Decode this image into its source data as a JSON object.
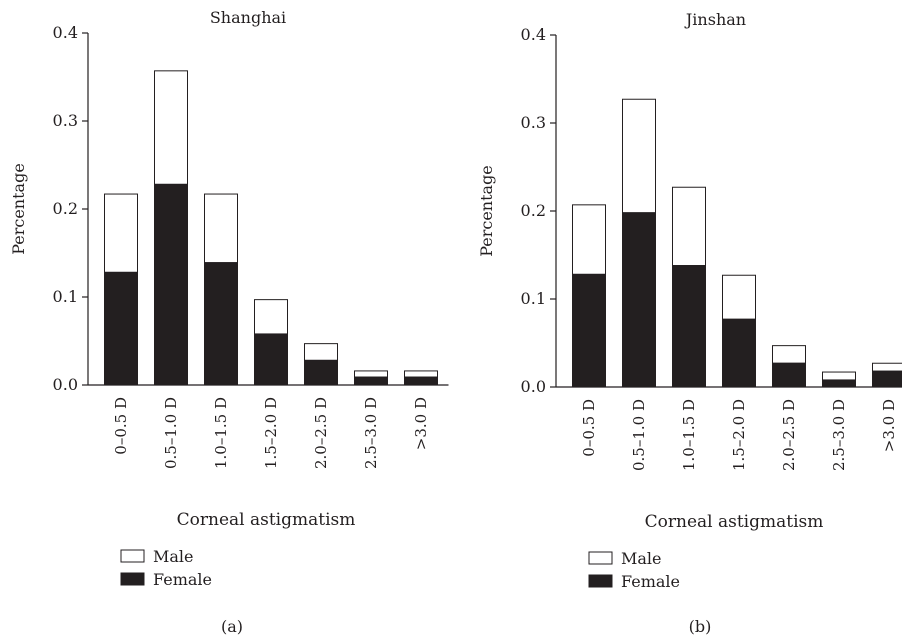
{
  "chart_data": [
    {
      "type": "bar",
      "stacked": true,
      "title": "Shanghai",
      "xlabel": "Corneal astigmatism",
      "ylabel": "Percentage",
      "ylim": [
        0,
        0.4
      ],
      "yticks": [
        "0.0",
        "0.1",
        "0.2",
        "0.3",
        "0.4"
      ],
      "categories": [
        "0–0.5 D",
        "0.5–1.0 D",
        "1.0–1.5 D",
        "1.5–2.0 D",
        "2.0–2.5 D",
        "2.5–3.0 D",
        ">3.0 D"
      ],
      "series": [
        {
          "name": "Female",
          "values": [
            0.128,
            0.228,
            0.139,
            0.058,
            0.028,
            0.009,
            0.009
          ]
        },
        {
          "name": "Male",
          "values": [
            0.089,
            0.129,
            0.078,
            0.039,
            0.019,
            0.007,
            0.007
          ]
        }
      ],
      "legend": [
        "Male",
        "Female"
      ],
      "legend_position": "bottom-left",
      "panel_label": "(a)",
      "colors": {
        "Male": "#ffffff",
        "Female": "#231f20"
      }
    },
    {
      "type": "bar",
      "stacked": true,
      "title": "Jinshan",
      "xlabel": "Corneal astigmatism",
      "ylabel": "Percentage",
      "ylim": [
        0,
        0.4
      ],
      "yticks": [
        "0.0",
        "0.1",
        "0.2",
        "0.3",
        "0.4"
      ],
      "categories": [
        "0–0.5 D",
        "0.5–1.0 D",
        "1.0–1.5 D",
        "1.5–2.0 D",
        "2.0–2.5 D",
        "2.5–3.0 D",
        ">3.0 D"
      ],
      "series": [
        {
          "name": "Female",
          "values": [
            0.128,
            0.198,
            0.138,
            0.077,
            0.027,
            0.008,
            0.018
          ]
        },
        {
          "name": "Male",
          "values": [
            0.079,
            0.129,
            0.089,
            0.05,
            0.02,
            0.009,
            0.009
          ]
        }
      ],
      "legend": [
        "Male",
        "Female"
      ],
      "legend_position": "bottom-left",
      "panel_label": "(b)",
      "colors": {
        "Male": "#ffffff",
        "Female": "#231f20"
      }
    }
  ]
}
